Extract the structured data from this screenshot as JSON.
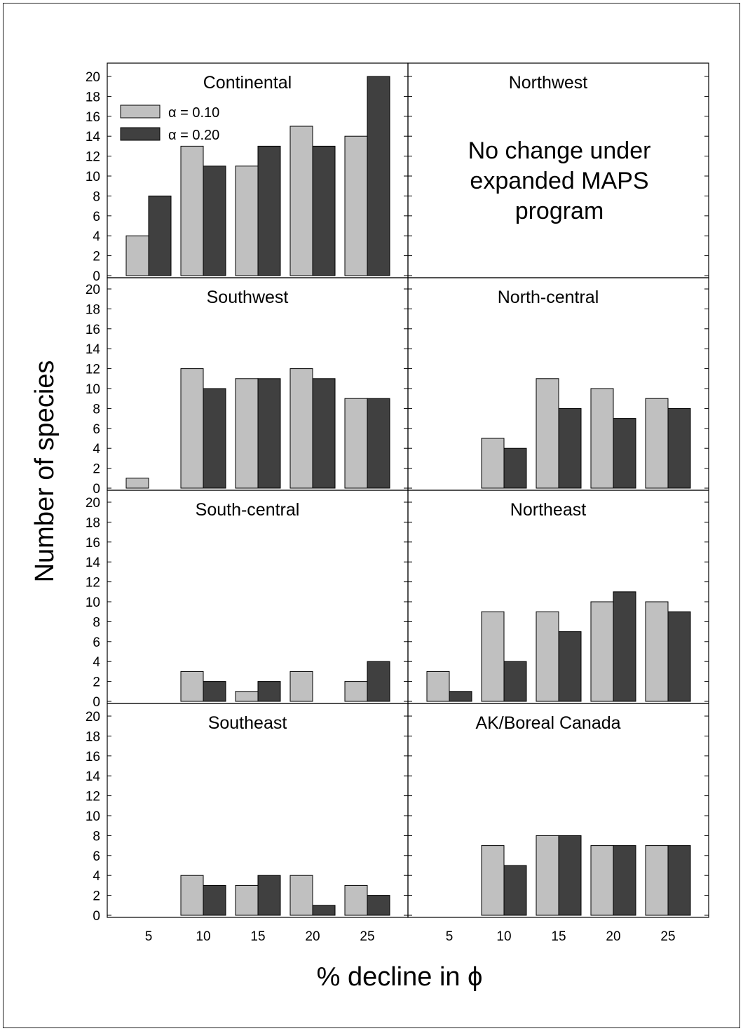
{
  "chart_data": {
    "type": "bar",
    "xlabel": "% decline in ϕ",
    "ylabel": "Number of species",
    "categories": [
      "5",
      "10",
      "15",
      "20",
      "25"
    ],
    "y_ticks": [
      "0",
      "2",
      "4",
      "6",
      "8",
      "10",
      "12",
      "14",
      "16",
      "18",
      "20"
    ],
    "ylim": [
      0,
      21
    ],
    "legend": {
      "placement": "top-left",
      "entries": [
        "α = 0.10",
        "α = 0.20"
      ]
    },
    "colors": {
      "alpha_010": "#c0c0c0",
      "alpha_020": "#404040",
      "border": "#000000"
    },
    "panels": [
      {
        "title": "Continental",
        "series": [
          {
            "name": "α = 0.10",
            "values": [
              4,
              13,
              11,
              15,
              14
            ]
          },
          {
            "name": "α = 0.20",
            "values": [
              8,
              11,
              13,
              13,
              20
            ]
          }
        ]
      },
      {
        "title": "Northwest",
        "note_lines": [
          "No change under",
          "expanded MAPS",
          "program"
        ],
        "series": []
      },
      {
        "title": "Southwest",
        "series": [
          {
            "name": "α = 0.10",
            "values": [
              1,
              12,
              11,
              12,
              9
            ]
          },
          {
            "name": "α = 0.20",
            "values": [
              0,
              10,
              11,
              11,
              9
            ]
          }
        ]
      },
      {
        "title": "North-central",
        "series": [
          {
            "name": "α = 0.10",
            "values": [
              0,
              5,
              11,
              10,
              9
            ]
          },
          {
            "name": "α = 0.20",
            "values": [
              0,
              4,
              8,
              7,
              8
            ]
          }
        ]
      },
      {
        "title": "South-central",
        "series": [
          {
            "name": "α = 0.10",
            "values": [
              0,
              3,
              1,
              3,
              2
            ]
          },
          {
            "name": "α = 0.20",
            "values": [
              0,
              2,
              2,
              0,
              4
            ]
          }
        ]
      },
      {
        "title": "Northeast",
        "series": [
          {
            "name": "α = 0.10",
            "values": [
              3,
              9,
              9,
              10,
              10
            ]
          },
          {
            "name": "α = 0.20",
            "values": [
              1,
              4,
              7,
              11,
              9
            ]
          }
        ]
      },
      {
        "title": "Southeast",
        "series": [
          {
            "name": "α = 0.10",
            "values": [
              0,
              4,
              3,
              4,
              3
            ]
          },
          {
            "name": "α = 0.20",
            "values": [
              0,
              3,
              4,
              1,
              2
            ]
          }
        ]
      },
      {
        "title": "AK/Boreal Canada",
        "series": [
          {
            "name": "α = 0.10",
            "values": [
              0,
              7,
              8,
              7,
              7
            ]
          },
          {
            "name": "α = 0.20",
            "values": [
              0,
              5,
              8,
              7,
              7
            ]
          }
        ]
      }
    ]
  }
}
